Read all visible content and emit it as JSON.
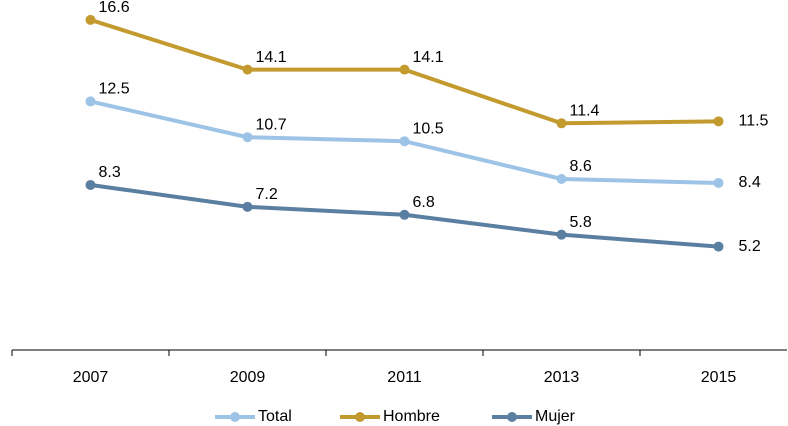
{
  "chart_data": {
    "type": "line",
    "categories": [
      "2007",
      "2009",
      "2011",
      "2013",
      "2015"
    ],
    "series": [
      {
        "name": "Total",
        "color": "#9dc3e6",
        "values": [
          12.5,
          10.7,
          10.5,
          8.6,
          8.4
        ]
      },
      {
        "name": "Hombre",
        "color": "#c39a2e",
        "values": [
          16.6,
          14.1,
          14.1,
          11.4,
          11.5
        ]
      },
      {
        "name": "Mujer",
        "color": "#5b7fa0",
        "values": [
          8.3,
          7.2,
          6.8,
          5.8,
          5.2
        ]
      }
    ],
    "ylim": [
      0,
      17.5
    ],
    "legend": "bottom"
  }
}
